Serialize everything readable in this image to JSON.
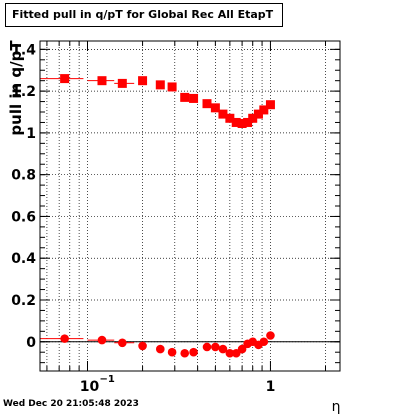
{
  "chart_data": {
    "type": "scatter",
    "title": "Fitted pull in q/pT for Global Rec All EtapT",
    "xlabel": "η",
    "ylabel": "pull in q/pT",
    "x_scale": "log",
    "xlim": [
      0.055,
      2.4
    ],
    "ylim": [
      -0.14,
      1.44
    ],
    "x_ticks": [
      {
        "value": 0.1,
        "base": "10",
        "exp": "−1"
      },
      {
        "value": 1,
        "label": "1"
      }
    ],
    "y_ticks": [
      {
        "value": 0,
        "label": "0"
      },
      {
        "value": 0.2,
        "label": "0.2"
      },
      {
        "value": 0.4,
        "label": "0.4"
      },
      {
        "value": 0.6,
        "label": "0.6"
      },
      {
        "value": 0.8,
        "label": "0.8"
      },
      {
        "value": 1.0,
        "label": "1"
      },
      {
        "value": 1.2,
        "label": "1.2"
      },
      {
        "value": 1.4,
        "label": "1.4"
      }
    ],
    "grid": true,
    "reference_line_y": 0,
    "series": [
      {
        "marker": "square",
        "color": "#ff0000",
        "points": [
          {
            "x": 0.075,
            "y": 1.26,
            "xerr": [
              0.055,
              0.095
            ]
          },
          {
            "x": 0.12,
            "y": 1.25,
            "xerr": [
              0.1,
              0.14
            ]
          },
          {
            "x": 0.155,
            "y": 1.237,
            "xerr": [
              0.14,
              0.18
            ]
          },
          {
            "x": 0.2,
            "y": 1.25
          },
          {
            "x": 0.25,
            "y": 1.23
          },
          {
            "x": 0.29,
            "y": 1.22
          },
          {
            "x": 0.34,
            "y": 1.17
          },
          {
            "x": 0.38,
            "y": 1.165
          },
          {
            "x": 0.45,
            "y": 1.14
          },
          {
            "x": 0.5,
            "y": 1.12
          },
          {
            "x": 0.55,
            "y": 1.09
          },
          {
            "x": 0.6,
            "y": 1.07
          },
          {
            "x": 0.65,
            "y": 1.05
          },
          {
            "x": 0.7,
            "y": 1.045
          },
          {
            "x": 0.75,
            "y": 1.05
          },
          {
            "x": 0.8,
            "y": 1.07
          },
          {
            "x": 0.86,
            "y": 1.09
          },
          {
            "x": 0.92,
            "y": 1.11
          },
          {
            "x": 1.0,
            "y": 1.135
          }
        ]
      },
      {
        "marker": "circle",
        "color": "#ff0000",
        "points": [
          {
            "x": 0.075,
            "y": 0.015,
            "xerr": [
              0.055,
              0.095
            ]
          },
          {
            "x": 0.12,
            "y": 0.008,
            "xerr": [
              0.1,
              0.14
            ]
          },
          {
            "x": 0.155,
            "y": -0.005,
            "xerr": [
              0.14,
              0.18
            ]
          },
          {
            "x": 0.2,
            "y": -0.02
          },
          {
            "x": 0.25,
            "y": -0.035
          },
          {
            "x": 0.29,
            "y": -0.05
          },
          {
            "x": 0.34,
            "y": -0.055
          },
          {
            "x": 0.38,
            "y": -0.05
          },
          {
            "x": 0.45,
            "y": -0.025
          },
          {
            "x": 0.5,
            "y": -0.025
          },
          {
            "x": 0.55,
            "y": -0.035
          },
          {
            "x": 0.6,
            "y": -0.055
          },
          {
            "x": 0.65,
            "y": -0.055
          },
          {
            "x": 0.7,
            "y": -0.035
          },
          {
            "x": 0.75,
            "y": -0.01
          },
          {
            "x": 0.8,
            "y": 0.0
          },
          {
            "x": 0.86,
            "y": -0.015
          },
          {
            "x": 0.92,
            "y": 0.0
          },
          {
            "x": 1.0,
            "y": 0.03
          }
        ]
      }
    ]
  },
  "datestamp": "Wed Dec 20 21:05:48 2023"
}
